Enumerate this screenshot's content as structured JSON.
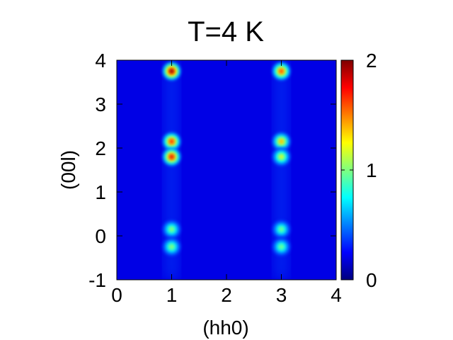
{
  "chart_data": {
    "type": "heatmap",
    "title": "T=4 K",
    "xlabel": "(hh0)",
    "ylabel": "(00l)",
    "xlim": [
      0,
      4
    ],
    "ylim": [
      -1,
      4
    ],
    "xticks": [
      "0",
      "1",
      "2",
      "3",
      "4"
    ],
    "yticks": [
      "-1",
      "0",
      "1",
      "2",
      "3",
      "4"
    ],
    "colorbar": {
      "range": [
        0,
        2
      ],
      "ticks": [
        "0",
        "1",
        "2"
      ],
      "colormap": [
        "#00007f",
        "#0000ff",
        "#007fff",
        "#00ffff",
        "#7fff7f",
        "#ffff00",
        "#ff7f00",
        "#ff0000",
        "#7f0000"
      ]
    },
    "background_intensity": 0.2,
    "peaks": [
      {
        "h": 1,
        "l": 3.75,
        "intensity": 2.0
      },
      {
        "h": 3,
        "l": 3.75,
        "intensity": 1.65
      },
      {
        "h": 1,
        "l": 2.15,
        "intensity": 1.7
      },
      {
        "h": 3,
        "l": 2.15,
        "intensity": 1.4
      },
      {
        "h": 1,
        "l": 1.8,
        "intensity": 1.8
      },
      {
        "h": 3,
        "l": 1.8,
        "intensity": 1.2
      },
      {
        "h": 1,
        "l": 0.15,
        "intensity": 1.05
      },
      {
        "h": 3,
        "l": 0.15,
        "intensity": 1.0
      },
      {
        "h": 1,
        "l": -0.25,
        "intensity": 1.05
      },
      {
        "h": 3,
        "l": -0.25,
        "intensity": 1.0
      }
    ]
  }
}
